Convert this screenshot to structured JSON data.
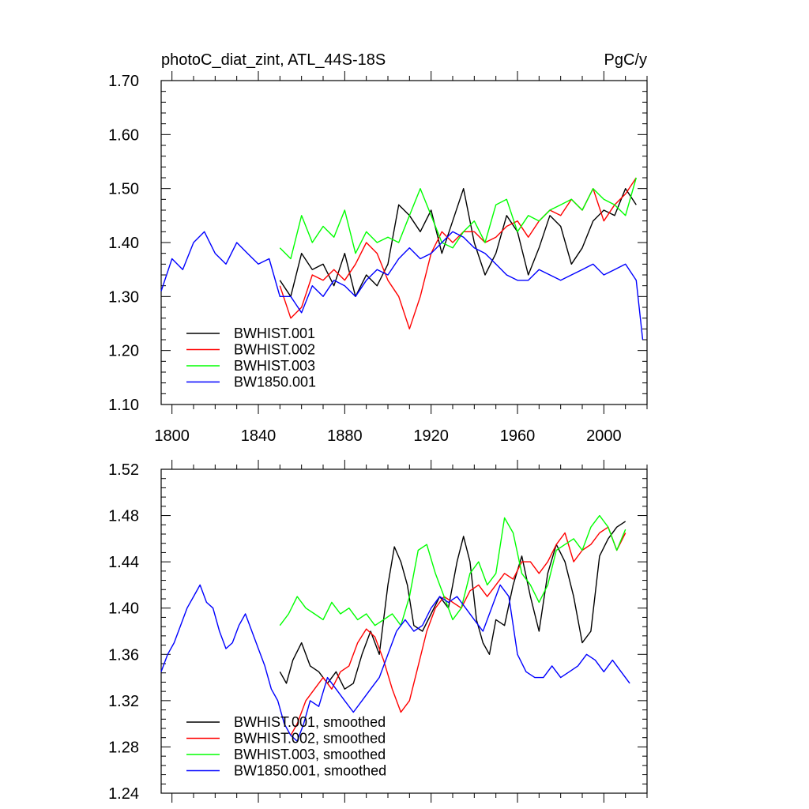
{
  "chart_data": [
    {
      "type": "line",
      "title": "photoC_diat_zint, ATL_44S-18S",
      "units": "PgC/y",
      "xlim": [
        1795,
        2020
      ],
      "ylim": [
        1.1,
        1.7
      ],
      "xticks": [
        1800,
        1840,
        1880,
        1920,
        1960,
        2000
      ],
      "xtick_labels": [
        "1800",
        "1840",
        "1880",
        "1920",
        "1960",
        "2000"
      ],
      "yticks": [
        1.1,
        1.2,
        1.3,
        1.4,
        1.5,
        1.6,
        1.7
      ],
      "ytick_labels": [
        "1.10",
        "1.20",
        "1.30",
        "1.40",
        "1.50",
        "1.60",
        "1.70"
      ],
      "legend_position": "bottom-left",
      "series": [
        {
          "name": "BWHIST.001",
          "color": "#000000",
          "x": [
            1850,
            1855,
            1860,
            1865,
            1870,
            1875,
            1880,
            1885,
            1890,
            1895,
            1900,
            1905,
            1910,
            1915,
            1920,
            1925,
            1930,
            1935,
            1940,
            1945,
            1950,
            1955,
            1960,
            1965,
            1970,
            1975,
            1980,
            1985,
            1990,
            1995,
            2000,
            2005,
            2010,
            2015
          ],
          "y": [
            1.33,
            1.3,
            1.38,
            1.35,
            1.36,
            1.32,
            1.38,
            1.3,
            1.34,
            1.32,
            1.36,
            1.47,
            1.45,
            1.42,
            1.46,
            1.38,
            1.44,
            1.5,
            1.4,
            1.34,
            1.38,
            1.45,
            1.42,
            1.34,
            1.39,
            1.45,
            1.43,
            1.36,
            1.39,
            1.44,
            1.46,
            1.45,
            1.5,
            1.47
          ]
        },
        {
          "name": "BWHIST.002",
          "color": "#ff0000",
          "x": [
            1850,
            1855,
            1860,
            1865,
            1870,
            1875,
            1880,
            1885,
            1890,
            1895,
            1900,
            1905,
            1910,
            1915,
            1920,
            1925,
            1930,
            1935,
            1940,
            1945,
            1950,
            1955,
            1960,
            1965,
            1970,
            1975,
            1980,
            1985,
            1990,
            1995,
            2000,
            2005,
            2010,
            2015
          ],
          "y": [
            1.32,
            1.26,
            1.28,
            1.34,
            1.33,
            1.35,
            1.33,
            1.36,
            1.4,
            1.38,
            1.33,
            1.3,
            1.24,
            1.3,
            1.38,
            1.42,
            1.4,
            1.42,
            1.42,
            1.4,
            1.41,
            1.43,
            1.44,
            1.41,
            1.44,
            1.46,
            1.45,
            1.48,
            1.46,
            1.5,
            1.44,
            1.47,
            1.49,
            1.52
          ]
        },
        {
          "name": "BWHIST.003",
          "color": "#00ff00",
          "x": [
            1850,
            1855,
            1860,
            1865,
            1870,
            1875,
            1880,
            1885,
            1890,
            1895,
            1900,
            1905,
            1910,
            1915,
            1920,
            1925,
            1930,
            1935,
            1940,
            1945,
            1950,
            1955,
            1960,
            1965,
            1970,
            1975,
            1980,
            1985,
            1990,
            1995,
            2000,
            2005,
            2010,
            2015
          ],
          "y": [
            1.39,
            1.37,
            1.45,
            1.4,
            1.43,
            1.41,
            1.46,
            1.38,
            1.42,
            1.4,
            1.41,
            1.4,
            1.45,
            1.5,
            1.45,
            1.4,
            1.39,
            1.42,
            1.44,
            1.4,
            1.47,
            1.48,
            1.42,
            1.45,
            1.44,
            1.46,
            1.47,
            1.48,
            1.46,
            1.5,
            1.48,
            1.47,
            1.45,
            1.52
          ]
        },
        {
          "name": "BW1850.001",
          "color": "#0000ff",
          "x": [
            1795,
            1800,
            1805,
            1810,
            1815,
            1820,
            1825,
            1830,
            1835,
            1840,
            1845,
            1850,
            1855,
            1860,
            1865,
            1870,
            1875,
            1880,
            1885,
            1890,
            1895,
            1900,
            1905,
            1910,
            1915,
            1920,
            1925,
            1930,
            1935,
            1940,
            1945,
            1950,
            1955,
            1960,
            1965,
            1970,
            1975,
            1980,
            1985,
            1990,
            1995,
            2000,
            2005,
            2010,
            2015,
            2018
          ],
          "y": [
            1.31,
            1.37,
            1.35,
            1.4,
            1.42,
            1.38,
            1.36,
            1.4,
            1.38,
            1.36,
            1.37,
            1.3,
            1.3,
            1.27,
            1.32,
            1.3,
            1.33,
            1.32,
            1.3,
            1.33,
            1.35,
            1.34,
            1.37,
            1.39,
            1.37,
            1.38,
            1.4,
            1.42,
            1.41,
            1.39,
            1.38,
            1.36,
            1.34,
            1.33,
            1.33,
            1.35,
            1.34,
            1.33,
            1.34,
            1.35,
            1.36,
            1.34,
            1.35,
            1.36,
            1.33,
            1.22
          ]
        }
      ]
    },
    {
      "type": "line",
      "title": "",
      "xlim": [
        1795,
        2020
      ],
      "ylim": [
        1.24,
        1.52
      ],
      "xticks": [
        1800,
        1840,
        1880,
        1920,
        1960,
        2000
      ],
      "yticks": [
        1.24,
        1.28,
        1.32,
        1.36,
        1.4,
        1.44,
        1.48,
        1.52
      ],
      "ytick_labels": [
        "1.24",
        "1.28",
        "1.32",
        "1.36",
        "1.40",
        "1.44",
        "1.48",
        "1.52"
      ],
      "legend_position": "bottom-left",
      "series": [
        {
          "name": "BWHIST.001, smoothed",
          "color": "#000000",
          "x": [
            1850,
            1853,
            1856,
            1860,
            1864,
            1868,
            1872,
            1876,
            1880,
            1884,
            1888,
            1892,
            1896,
            1900,
            1903,
            1906,
            1909,
            1912,
            1916,
            1920,
            1924,
            1928,
            1932,
            1935,
            1938,
            1941,
            1944,
            1947,
            1950,
            1954,
            1958,
            1962,
            1966,
            1970,
            1974,
            1978,
            1982,
            1986,
            1990,
            1994,
            1998,
            2002,
            2006,
            2010
          ],
          "y": [
            1.345,
            1.335,
            1.355,
            1.37,
            1.35,
            1.345,
            1.335,
            1.345,
            1.33,
            1.335,
            1.36,
            1.38,
            1.36,
            1.42,
            1.453,
            1.44,
            1.42,
            1.385,
            1.38,
            1.395,
            1.41,
            1.4,
            1.44,
            1.462,
            1.44,
            1.39,
            1.37,
            1.36,
            1.39,
            1.385,
            1.42,
            1.445,
            1.41,
            1.38,
            1.43,
            1.455,
            1.44,
            1.41,
            1.37,
            1.38,
            1.445,
            1.46,
            1.47,
            1.475
          ]
        },
        {
          "name": "BWHIST.002, smoothed",
          "color": "#ff0000",
          "x": [
            1855,
            1858,
            1862,
            1866,
            1870,
            1874,
            1878,
            1882,
            1886,
            1890,
            1894,
            1898,
            1902,
            1906,
            1910,
            1914,
            1918,
            1922,
            1926,
            1930,
            1934,
            1938,
            1942,
            1946,
            1950,
            1954,
            1958,
            1962,
            1966,
            1970,
            1974,
            1978,
            1982,
            1986,
            1990,
            1994,
            1998,
            2002,
            2006,
            2010
          ],
          "y": [
            1.29,
            1.3,
            1.32,
            1.33,
            1.34,
            1.33,
            1.345,
            1.35,
            1.37,
            1.382,
            1.375,
            1.355,
            1.33,
            1.31,
            1.32,
            1.35,
            1.38,
            1.4,
            1.41,
            1.405,
            1.4,
            1.415,
            1.42,
            1.41,
            1.42,
            1.43,
            1.425,
            1.44,
            1.44,
            1.43,
            1.44,
            1.455,
            1.465,
            1.44,
            1.45,
            1.455,
            1.465,
            1.47,
            1.45,
            1.465
          ]
        },
        {
          "name": "BWHIST.003, smoothed",
          "color": "#00ff00",
          "x": [
            1850,
            1854,
            1858,
            1862,
            1866,
            1870,
            1874,
            1878,
            1882,
            1886,
            1890,
            1894,
            1898,
            1902,
            1906,
            1910,
            1914,
            1918,
            1922,
            1926,
            1930,
            1934,
            1938,
            1942,
            1946,
            1950,
            1954,
            1958,
            1962,
            1966,
            1970,
            1974,
            1978,
            1982,
            1986,
            1990,
            1994,
            1998,
            2002,
            2006,
            2010
          ],
          "y": [
            1.385,
            1.395,
            1.41,
            1.4,
            1.395,
            1.39,
            1.405,
            1.395,
            1.4,
            1.39,
            1.395,
            1.385,
            1.39,
            1.395,
            1.385,
            1.41,
            1.45,
            1.455,
            1.43,
            1.41,
            1.39,
            1.4,
            1.43,
            1.44,
            1.42,
            1.43,
            1.478,
            1.465,
            1.43,
            1.42,
            1.405,
            1.42,
            1.45,
            1.455,
            1.46,
            1.45,
            1.47,
            1.48,
            1.47,
            1.45,
            1.468
          ]
        },
        {
          "name": "BW1850.001, smoothed",
          "color": "#0000ff",
          "x": [
            1795,
            1798,
            1801,
            1804,
            1807,
            1810,
            1813,
            1816,
            1819,
            1822,
            1825,
            1828,
            1831,
            1834,
            1837,
            1840,
            1843,
            1846,
            1849,
            1852,
            1855,
            1858,
            1861,
            1864,
            1868,
            1872,
            1876,
            1880,
            1884,
            1888,
            1892,
            1896,
            1900,
            1904,
            1908,
            1912,
            1916,
            1920,
            1924,
            1928,
            1932,
            1936,
            1940,
            1944,
            1948,
            1952,
            1956,
            1960,
            1964,
            1968,
            1972,
            1976,
            1980,
            1984,
            1988,
            1992,
            1996,
            2000,
            2004,
            2008,
            2012
          ],
          "y": [
            1.345,
            1.36,
            1.37,
            1.385,
            1.4,
            1.41,
            1.42,
            1.405,
            1.4,
            1.38,
            1.365,
            1.37,
            1.385,
            1.395,
            1.38,
            1.365,
            1.35,
            1.33,
            1.32,
            1.3,
            1.29,
            1.285,
            1.3,
            1.32,
            1.315,
            1.34,
            1.33,
            1.32,
            1.31,
            1.32,
            1.33,
            1.34,
            1.36,
            1.38,
            1.39,
            1.38,
            1.385,
            1.4,
            1.41,
            1.405,
            1.41,
            1.4,
            1.39,
            1.38,
            1.4,
            1.42,
            1.41,
            1.36,
            1.345,
            1.34,
            1.34,
            1.35,
            1.34,
            1.345,
            1.35,
            1.36,
            1.355,
            1.345,
            1.355,
            1.345,
            1.335
          ]
        }
      ]
    }
  ]
}
